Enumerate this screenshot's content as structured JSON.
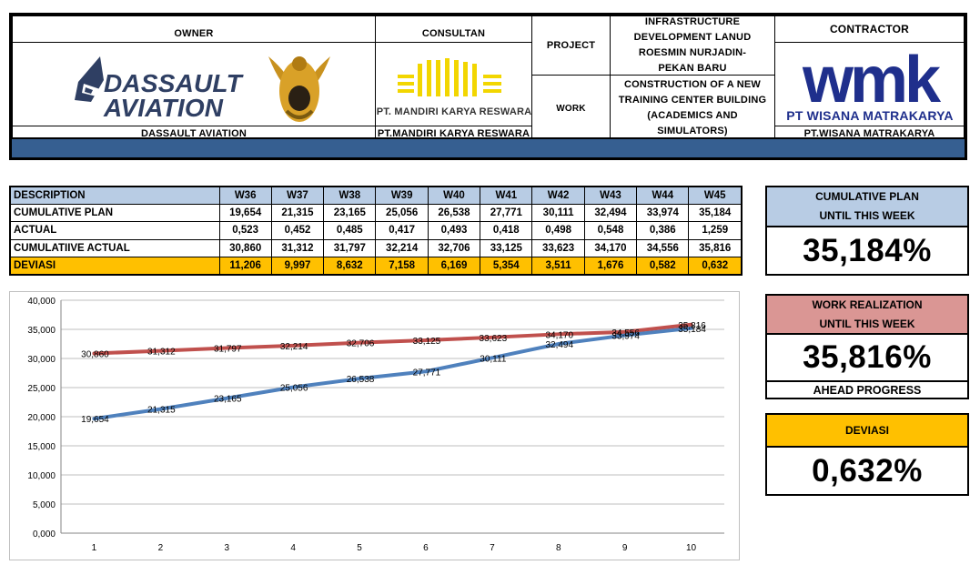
{
  "header": {
    "owner_label": "OWNER",
    "owner_name": "DASSAULT AVIATION",
    "owner_logo_line1": "DASSAULT",
    "owner_logo_line2": "AVIATION",
    "consultant_label": "CONSULTAN",
    "consultant_logo_text": "PT. MANDIRI KARYA RESWARA",
    "consultant_name": "PT.MANDIRI KARYA RESWARA",
    "project_label": "PROJECT",
    "project_value": "INFRASTRUCTURE DEVELOPMENT LANUD ROESMIN NURJADIN-PEKAN BARU",
    "work_label": "WORK",
    "work_value": "CONSTRUCTION OF A NEW TRAINING CENTER BUILDING (ACADEMICS AND SIMULATORS)",
    "contractor_label": "CONTRACTOR",
    "contractor_logo_text": "wmk",
    "contractor_logo_sub": "PT WISANA MATRAKARYA",
    "contractor_name": "PT.WISANA MATRAKARYA"
  },
  "table": {
    "columns": [
      "DESCRIPTION",
      "W36",
      "W37",
      "W38",
      "W39",
      "W40",
      "W41",
      "W42",
      "W43",
      "W44",
      "W45"
    ],
    "rows": [
      {
        "label": "CUMULATIVE PLAN",
        "values": [
          "19,654",
          "21,315",
          "23,165",
          "25,056",
          "26,538",
          "27,771",
          "30,111",
          "32,494",
          "33,974",
          "35,184"
        ]
      },
      {
        "label": "ACTUAL",
        "values": [
          "0,523",
          "0,452",
          "0,485",
          "0,417",
          "0,493",
          "0,418",
          "0,498",
          "0,548",
          "0,386",
          "1,259"
        ]
      },
      {
        "label": "CUMULATIIVE ACTUAL",
        "values": [
          "30,860",
          "31,312",
          "31,797",
          "32,214",
          "32,706",
          "33,125",
          "33,623",
          "34,170",
          "34,556",
          "35,816"
        ]
      },
      {
        "label": "DEVIASI",
        "values": [
          "11,206",
          "9,997",
          "8,632",
          "7,158",
          "6,169",
          "5,354",
          "3,511",
          "1,676",
          "0,582",
          "0,632"
        ]
      }
    ]
  },
  "summary": {
    "plan_title_1": "CUMULATIVE PLAN",
    "plan_title_2": "UNTIL THIS WEEK",
    "plan_value": "35,184%",
    "real_title_1": "WORK REALIZATION",
    "real_title_2": "UNTIL THIS WEEK",
    "real_value": "35,816%",
    "real_status": "AHEAD PROGRESS",
    "dev_title": "DEVIASI",
    "dev_value": "0,632%"
  },
  "colors": {
    "header_blue": "#365f91",
    "light_blue": "#b8cce4",
    "pink": "#da9694",
    "orange": "#ffc000",
    "plan_line": "#4f81bd",
    "actual_line": "#c0504d",
    "consultant_yellow": "#f2d600",
    "wmk_blue": "#1f2f8c"
  },
  "chart_data": {
    "type": "line",
    "x": [
      1,
      2,
      3,
      4,
      5,
      6,
      7,
      8,
      9,
      10
    ],
    "ylim": [
      0,
      40
    ],
    "yticks": [
      "0,000",
      "5,000",
      "10,000",
      "15,000",
      "20,000",
      "25,000",
      "30,000",
      "35,000",
      "40,000"
    ],
    "ytick_values": [
      0,
      5,
      10,
      15,
      20,
      25,
      30,
      35,
      40
    ],
    "series": [
      {
        "values": [
          19.654,
          21.315,
          23.165,
          25.056,
          26.538,
          27.771,
          30.111,
          32.494,
          33.974,
          35.184
        ],
        "labels": [
          "19,654",
          "21,315",
          "23,165",
          "25,056",
          "26,538",
          "27,771",
          "30,111",
          "32,494",
          "33,974",
          "35,184"
        ]
      },
      {
        "values": [
          30.86,
          31.312,
          31.797,
          32.214,
          32.706,
          33.125,
          33.623,
          34.17,
          34.556,
          35.816
        ],
        "labels": [
          "30,860",
          "31,312",
          "31,797",
          "32,214",
          "32,706",
          "33,125",
          "33,623",
          "34,170",
          "34,556",
          "35,816"
        ]
      }
    ]
  }
}
